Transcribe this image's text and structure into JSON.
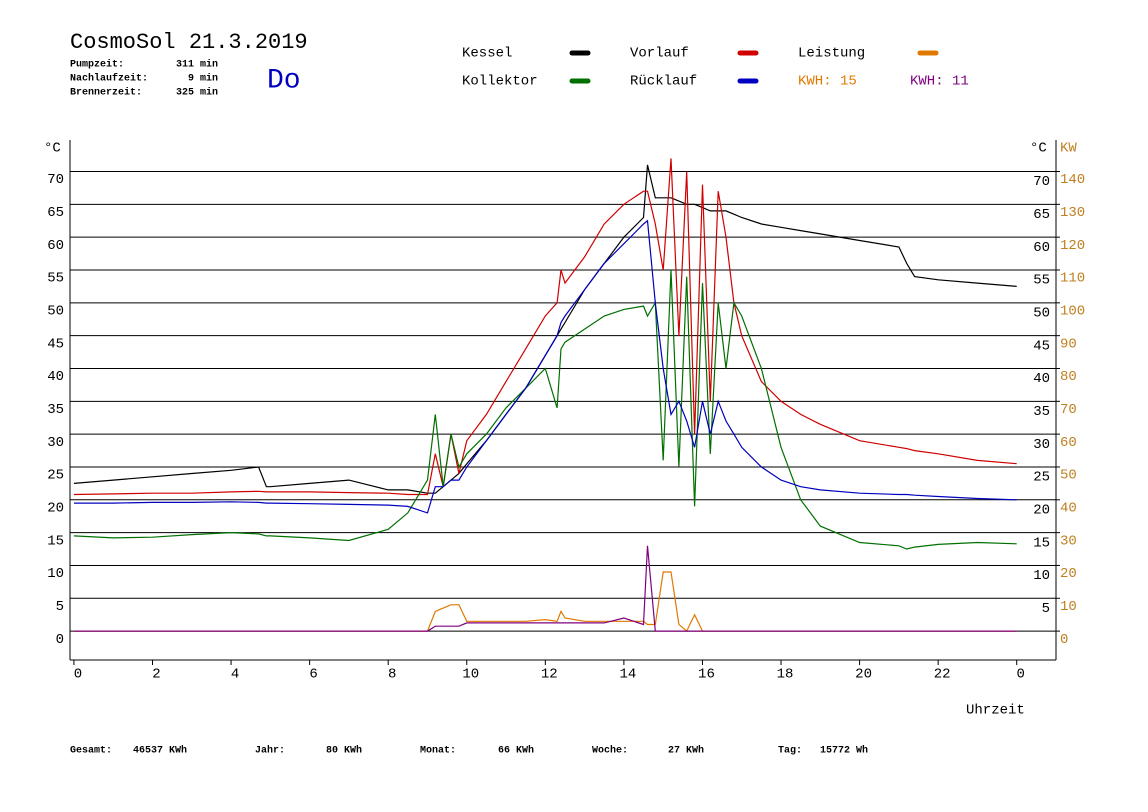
{
  "header": {
    "title": "CosmoSol 21.3.2019",
    "day": "Do",
    "info": [
      [
        "Pumpzeit:",
        "311 min"
      ],
      [
        "Nachlaufzeit:",
        "9 min"
      ],
      [
        "Brennerzeit:",
        "325 min"
      ]
    ],
    "kwh": [
      {
        "label": "KWH: 15",
        "color": "#e07800"
      },
      {
        "label": "KWH: 11",
        "color": "#800080"
      }
    ]
  },
  "footer": [
    [
      "Gesamt:",
      "46537 KWh"
    ],
    [
      "Jahr:",
      "80 KWh"
    ],
    [
      "Monat:",
      "66 KWh"
    ],
    [
      "Woche:",
      "27 KWh"
    ],
    [
      "Tag:",
      "15772 Wh"
    ]
  ],
  "chart_data": {
    "type": "line",
    "x_label": "Uhrzeit",
    "y_unit": "°C",
    "y2_unit": "KW",
    "x": [
      0,
      1,
      2,
      3,
      4,
      4.7,
      4.9,
      5,
      6,
      7,
      8,
      8.5,
      9,
      9.2,
      9.4,
      9.6,
      9.8,
      10,
      10.5,
      11,
      11.5,
      12,
      12.3,
      12.4,
      12.5,
      13,
      13.5,
      14,
      14.5,
      14.6,
      14.8,
      15,
      15.2,
      15.4,
      15.6,
      15.8,
      16,
      16.2,
      16.4,
      16.6,
      16.8,
      17,
      17.5,
      18,
      18.5,
      19,
      20,
      21,
      21.2,
      21.4,
      22,
      23,
      24
    ],
    "xlim": [
      -0.1,
      25
    ],
    "xticks": [
      0,
      2,
      4,
      6,
      8,
      10,
      12,
      14,
      16,
      18,
      20,
      22,
      {
        "value": 24,
        "label": "0"
      }
    ],
    "ylim": [
      -4.4,
      74.8
    ],
    "yticks": [
      0,
      5,
      10,
      15,
      20,
      25,
      30,
      35,
      40,
      45,
      50,
      55,
      60,
      65,
      70
    ],
    "y2lim": [
      -8.8,
      149.6
    ],
    "y2ticks": [
      0,
      10,
      20,
      30,
      40,
      50,
      60,
      70,
      80,
      90,
      100,
      110,
      120,
      130,
      140
    ],
    "grid": true,
    "series": [
      {
        "name": "Kessel",
        "color": "#000000",
        "values": [
          22.5,
          23,
          23.5,
          24,
          24.5,
          25,
          22,
          22,
          22.5,
          23,
          21.5,
          21.5,
          21,
          21,
          22,
          23,
          24,
          25.5,
          29,
          33,
          37,
          42,
          45,
          46,
          47,
          52,
          56,
          60,
          63,
          71,
          66,
          66,
          66,
          65.5,
          65,
          65,
          64.5,
          64,
          64,
          64,
          63.5,
          63,
          62,
          61.5,
          61,
          60.5,
          59.5,
          58.5,
          56,
          54,
          53.5,
          53,
          52.5
        ]
      },
      {
        "name": "Vorlauf",
        "color": "#d00000",
        "values": [
          20.8,
          20.9,
          21,
          21,
          21.2,
          21.3,
          21.2,
          21.2,
          21.2,
          21.1,
          21,
          20.8,
          20.8,
          27,
          22,
          30,
          24,
          29,
          33,
          38,
          43,
          48,
          50,
          55,
          53,
          57,
          62,
          65,
          67,
          67,
          62,
          55,
          72,
          45,
          70,
          30,
          68,
          35,
          67,
          60,
          50,
          45,
          38,
          35,
          33,
          31.5,
          29,
          28,
          27.8,
          27.5,
          27,
          26,
          25.5
        ]
      },
      {
        "name": "Leistung",
        "color": "#e07800",
        "axis": "y2",
        "values": [
          0,
          0,
          0,
          0,
          0,
          0,
          0,
          0,
          0,
          0,
          0,
          0,
          0,
          6,
          7,
          8,
          8,
          3,
          3,
          3,
          3,
          3.5,
          3,
          6,
          4,
          3,
          3,
          3,
          3,
          2,
          2,
          18,
          18,
          2,
          0,
          5,
          0,
          0,
          0,
          0,
          0,
          0,
          0,
          0,
          0,
          0,
          0,
          0,
          0,
          0,
          0,
          0,
          0
        ]
      },
      {
        "name": "Kollektor",
        "color": "#007000",
        "values": [
          14.5,
          14.2,
          14.3,
          14.7,
          15,
          14.8,
          14.5,
          14.5,
          14.2,
          13.8,
          15.5,
          18,
          23,
          33,
          22,
          30,
          25,
          27,
          30,
          34,
          37,
          40,
          34,
          43,
          44,
          46,
          48,
          49,
          49.5,
          48,
          50,
          26,
          55,
          25,
          54,
          19,
          53,
          27,
          50,
          40,
          50,
          48,
          40,
          28,
          20,
          16,
          13.5,
          13,
          12.5,
          12.8,
          13.2,
          13.5,
          13.3
        ]
      },
      {
        "name": "Rücklauf",
        "color": "#0000c0",
        "values": [
          19.5,
          19.5,
          19.6,
          19.6,
          19.7,
          19.6,
          19.5,
          19.5,
          19.4,
          19.3,
          19.2,
          19,
          18,
          22,
          22,
          23,
          23,
          25,
          29,
          33,
          37,
          42,
          45,
          47,
          48,
          52,
          56,
          59,
          62,
          62.5,
          50,
          40,
          33,
          35,
          32,
          28,
          35,
          30,
          35,
          32,
          30,
          28,
          25,
          23,
          22,
          21.5,
          21,
          20.8,
          20.8,
          20.7,
          20.5,
          20.2,
          20
        ]
      },
      {
        "color": "#800080",
        "axis": "y2",
        "values": [
          0,
          0,
          0,
          0,
          0,
          0,
          0,
          0,
          0,
          0,
          0,
          0,
          0,
          1.5,
          1.5,
          1.5,
          1.5,
          2.5,
          2.5,
          2.5,
          2.5,
          2.5,
          2.5,
          2.5,
          2.5,
          2.5,
          2.5,
          4,
          2,
          26,
          0,
          0,
          0,
          0,
          0,
          0,
          0,
          0,
          0,
          0,
          0,
          0,
          0,
          0,
          0,
          0,
          0,
          0,
          0,
          0,
          0,
          0,
          0
        ]
      }
    ]
  }
}
